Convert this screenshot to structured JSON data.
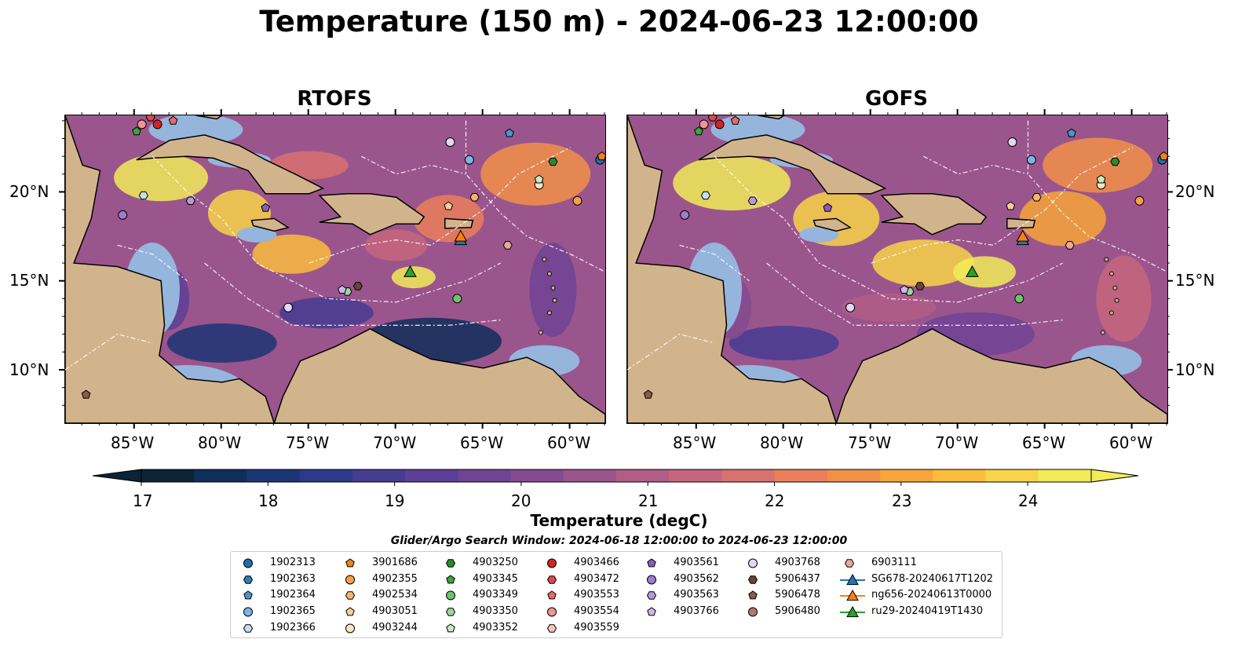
{
  "title": "Temperature (150 m) - 2024-06-23 12:00:00",
  "panels": [
    {
      "title": "RTOFS"
    },
    {
      "title": "GOFS"
    }
  ],
  "axes": {
    "x_ticks": [
      "85°W",
      "80°W",
      "75°W",
      "70°W",
      "65°W",
      "60°W"
    ],
    "y_ticks": [
      "20°N",
      "15°N",
      "10°N"
    ],
    "lon_range": [
      -89,
      -58
    ],
    "lat_range": [
      7,
      24.3
    ]
  },
  "colorbar": {
    "label": "Temperature (degC)",
    "ticks": [
      "17",
      "18",
      "19",
      "20",
      "21",
      "22",
      "23",
      "24"
    ],
    "range": [
      16.75,
      24.5
    ],
    "colors": [
      "#0b2436",
      "#0f2e5a",
      "#1c3574",
      "#2c3a8a",
      "#463c92",
      "#5c4097",
      "#704394",
      "#844b91",
      "#9b558d",
      "#b15e86",
      "#c6667d",
      "#d9716e",
      "#ea7f5c",
      "#f29048",
      "#f7a43a",
      "#f9bc3d",
      "#f8d448",
      "#f1ec58"
    ]
  },
  "map_colors": {
    "land": "#d2b48c",
    "shallow": "#95b5dd",
    "deep": "#0c2637",
    "road": "#ffffff"
  },
  "legend": {
    "title": "Glider/Argo Search Window: 2024-06-18 12:00:00 to 2024-06-23 12:00:00",
    "columns": [
      [
        {
          "label": "1902313",
          "marker": "circle",
          "color": "#1f6faa"
        },
        {
          "label": "1902363",
          "marker": "hexagon",
          "color": "#2d7fb8"
        },
        {
          "label": "1902364",
          "marker": "pentagon",
          "color": "#4b93cc"
        },
        {
          "label": "1902365",
          "marker": "circle",
          "color": "#7db4e3"
        },
        {
          "label": "1902366",
          "marker": "hexagon",
          "color": "#c6ddf3"
        }
      ],
      [
        {
          "label": "3901686",
          "marker": "pentagon",
          "color": "#ef8419"
        },
        {
          "label": "4902355",
          "marker": "circle",
          "color": "#f5a048"
        },
        {
          "label": "4902534",
          "marker": "hexagon",
          "color": "#f8b56a"
        },
        {
          "label": "4903051",
          "marker": "pentagon",
          "color": "#fccc94"
        },
        {
          "label": "4903244",
          "marker": "circle",
          "color": "#fde2c0"
        }
      ],
      [
        {
          "label": "4903250",
          "marker": "hexagon",
          "color": "#2a8a2a"
        },
        {
          "label": "4903345",
          "marker": "pentagon",
          "color": "#3da33d"
        },
        {
          "label": "4903349",
          "marker": "circle",
          "color": "#6cc36c"
        },
        {
          "label": "4903350",
          "marker": "hexagon",
          "color": "#9bd69b"
        },
        {
          "label": "4903352",
          "marker": "pentagon",
          "color": "#c8ebc4"
        }
      ],
      [
        {
          "label": "4903466",
          "marker": "circle",
          "color": "#d62222"
        },
        {
          "label": "4903472",
          "marker": "hexagon",
          "color": "#de4848"
        },
        {
          "label": "4903553",
          "marker": "pentagon",
          "color": "#e66a6a"
        },
        {
          "label": "4903554",
          "marker": "circle",
          "color": "#f09494"
        },
        {
          "label": "4903559",
          "marker": "hexagon",
          "color": "#f8c2c2"
        }
      ],
      [
        {
          "label": "4903561",
          "marker": "pentagon",
          "color": "#8a5bbd"
        },
        {
          "label": "4903562",
          "marker": "circle",
          "color": "#a07ccd"
        },
        {
          "label": "4903563",
          "marker": "hexagon",
          "color": "#b798db"
        },
        {
          "label": "4903766",
          "marker": "pentagon",
          "color": "#cdb6ea"
        }
      ],
      [
        {
          "label": "4903768",
          "marker": "circle",
          "color": "#e6d6f6"
        },
        {
          "label": "5906437",
          "marker": "hexagon",
          "color": "#6e4236"
        },
        {
          "label": "5906478",
          "marker": "pentagon",
          "color": "#8c5a4a"
        },
        {
          "label": "5906480",
          "marker": "circle",
          "color": "#b07c68"
        }
      ],
      [
        {
          "label": "6903111",
          "marker": "hexagon",
          "color": "#e8a99a"
        },
        {
          "label": "SG678-20240617T1202",
          "marker": "triangle-line",
          "color": "#1f77b4"
        },
        {
          "label": "ng656-20240613T0000",
          "marker": "triangle-line",
          "color": "#ff7f0e"
        },
        {
          "label": "ru29-20240419T1430",
          "marker": "triangle-line",
          "color": "#2ca02c"
        }
      ]
    ]
  },
  "observations": [
    {
      "id": "1902313",
      "lon": -58.3,
      "lat": 21.8
    },
    {
      "id": "1902365",
      "lon": -65.8,
      "lat": 21.8
    },
    {
      "id": "1902364",
      "lon": -63.5,
      "lat": 23.3
    },
    {
      "id": "1902366",
      "lon": -84.5,
      "lat": 19.8
    },
    {
      "id": "3901686",
      "lon": -58.2,
      "lat": 22.0
    },
    {
      "id": "4902355",
      "lon": -59.6,
      "lat": 19.5
    },
    {
      "id": "4902534",
      "lon": -65.5,
      "lat": 19.7
    },
    {
      "id": "4903051",
      "lon": -67.0,
      "lat": 19.2
    },
    {
      "id": "4903244",
      "lon": -61.8,
      "lat": 20.4
    },
    {
      "id": "4903250",
      "lon": -61.0,
      "lat": 21.7
    },
    {
      "id": "4903345",
      "lon": -84.9,
      "lat": 23.4
    },
    {
      "id": "4903349",
      "lon": -66.5,
      "lat": 14.0
    },
    {
      "id": "4903350",
      "lon": -72.8,
      "lat": 14.4
    },
    {
      "id": "4903352",
      "lon": -61.8,
      "lat": 20.7
    },
    {
      "id": "4903466",
      "lon": -83.7,
      "lat": 23.8
    },
    {
      "id": "4903472",
      "lon": -84.1,
      "lat": 24.2
    },
    {
      "id": "4903553",
      "lon": -82.8,
      "lat": 24.0
    },
    {
      "id": "4903554",
      "lon": -84.6,
      "lat": 23.8
    },
    {
      "id": "4903561",
      "lon": -77.5,
      "lat": 19.1
    },
    {
      "id": "4903562",
      "lon": -85.7,
      "lat": 18.7
    },
    {
      "id": "4903563",
      "lon": -81.8,
      "lat": 19.5
    },
    {
      "id": "4903766",
      "lon": -73.1,
      "lat": 14.5
    },
    {
      "id": "4903768",
      "lon": -76.2,
      "lat": 13.5
    },
    {
      "id": "4903768b",
      "lon": -66.9,
      "lat": 22.8
    },
    {
      "id": "5906437",
      "lon": -72.2,
      "lat": 14.7
    },
    {
      "id": "5906478",
      "lon": -87.8,
      "lat": 8.6
    },
    {
      "id": "6903111",
      "lon": -63.6,
      "lat": 17.0
    }
  ],
  "gliders": [
    {
      "id": "SG678-20240617T1202",
      "lon": -66.3,
      "lat": 17.3,
      "color": "#1f77b4"
    },
    {
      "id": "ng656-20240613T0000",
      "lon": -66.3,
      "lat": 17.5,
      "color": "#ff7f0e"
    },
    {
      "id": "ru29-20240419T1430",
      "lon": -69.2,
      "lat": 15.5,
      "color": "#2ca02c"
    }
  ]
}
